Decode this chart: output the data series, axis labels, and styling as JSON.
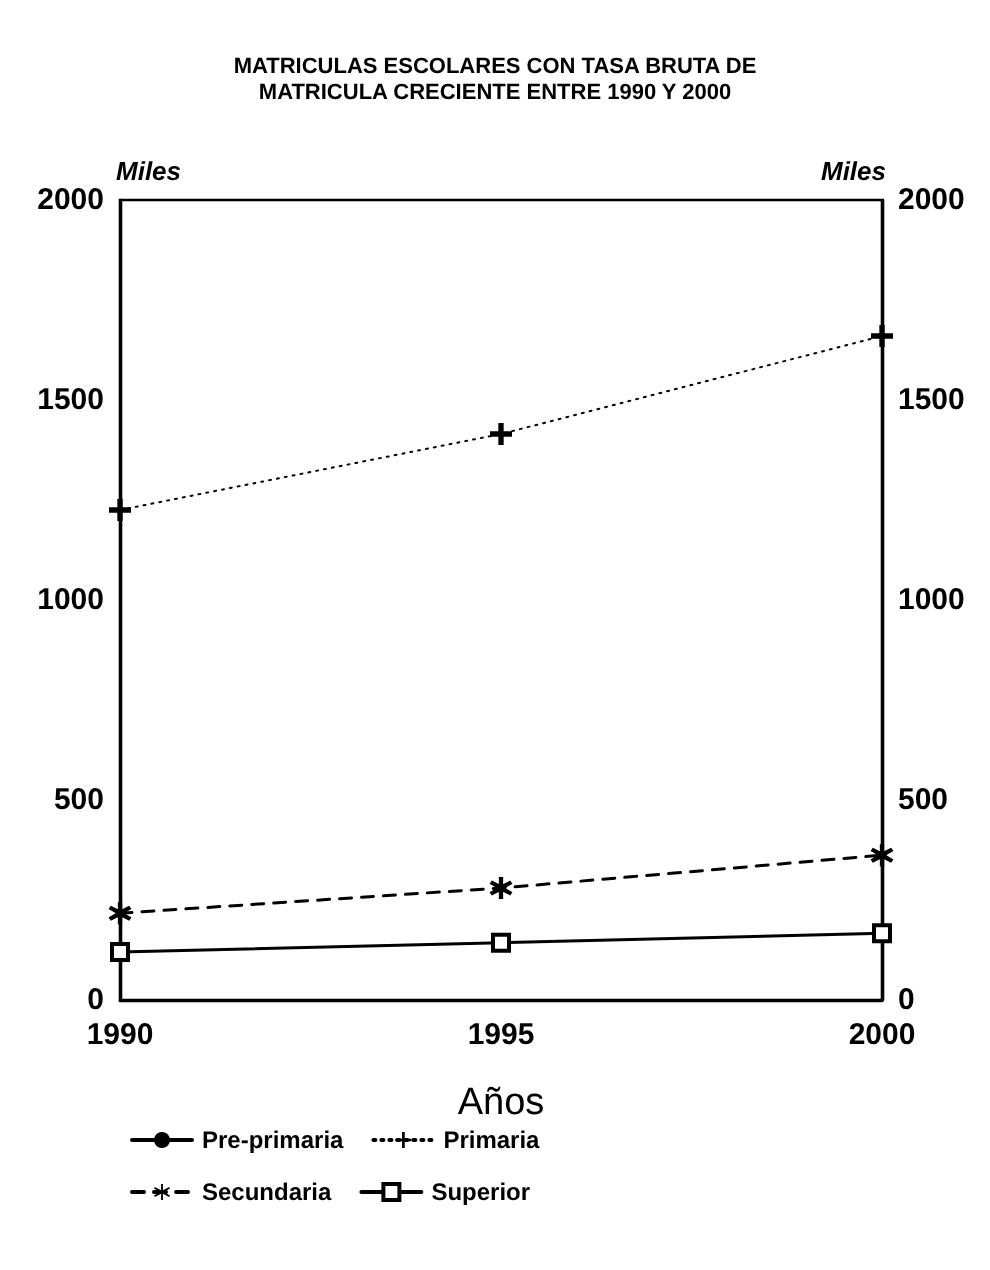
{
  "chart_data": {
    "type": "line",
    "title": "MATRICULAS ESCOLARES CON TASA BRUTA DE\nMATRICULA CRECIENTE ENTRE 1990 Y 2000",
    "xlabel": "Años",
    "ylabel": "Miles",
    "y2label": "Miles",
    "x": [
      1990,
      1995,
      2000
    ],
    "series": [
      {
        "name": "Pre-primaria",
        "color": "#000000",
        "marker": "circle",
        "line_style": "solid",
        "values": [
          null,
          null,
          null
        ]
      },
      {
        "name": "Primaria",
        "color": "#000000",
        "marker": "cross",
        "line_style": "dotted",
        "values": [
          1225,
          1415,
          1660
        ]
      },
      {
        "name": "Secundaria",
        "color": "#000000",
        "marker": "star",
        "line_style": "dashed",
        "values": [
          217,
          280,
          362
        ]
      },
      {
        "name": "Superior",
        "color": "#000000",
        "marker": "square",
        "line_style": "solid",
        "values": [
          120,
          143,
          167
        ]
      }
    ],
    "xlim": [
      1990,
      2000
    ],
    "xticks": [
      1990,
      1995,
      2000
    ],
    "ylim": [
      0,
      2000
    ],
    "yticks": [
      0,
      500,
      1000,
      1500,
      2000
    ],
    "y2lim": [
      0,
      2000
    ],
    "y2ticks": [
      0,
      500,
      1000,
      1500,
      2000
    ],
    "grid": false,
    "legend": "bottom"
  }
}
